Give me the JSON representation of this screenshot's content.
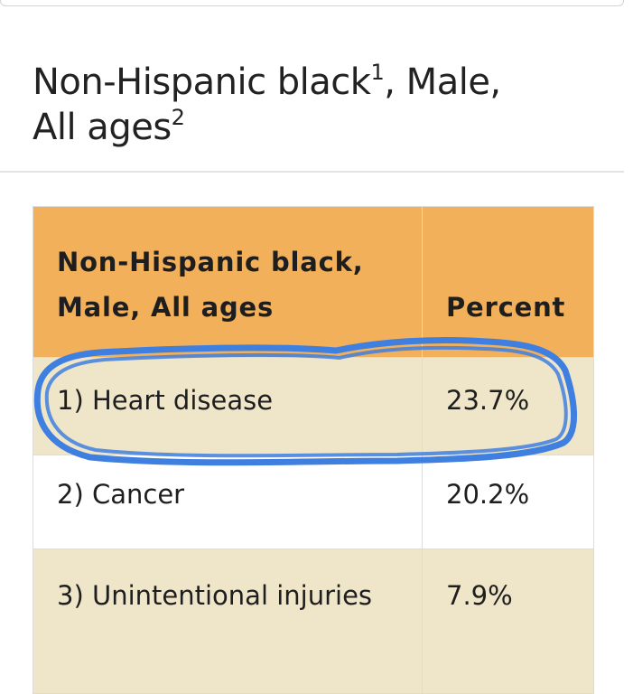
{
  "title": {
    "text_part1": "Non-Hispanic black",
    "sup1": "1",
    "text_part2": ", Male,",
    "text_part3": "All ages",
    "sup2": "2"
  },
  "table": {
    "headers": {
      "group": "Non-Hispanic black, Male, All ages",
      "percent": "Percent"
    },
    "rows": [
      {
        "cause": "1) Heart disease",
        "percent": "23.7%"
      },
      {
        "cause": "2) Cancer",
        "percent": "20.2%"
      },
      {
        "cause": "3) Unintentional injuries",
        "percent": "7.9%"
      }
    ]
  },
  "annotation": {
    "color": "#3f7fe0",
    "target_row": 0
  },
  "colors": {
    "header_bg": "#f2b05a",
    "odd_row_bg": "#efe6ca",
    "even_row_bg": "#ffffff"
  }
}
